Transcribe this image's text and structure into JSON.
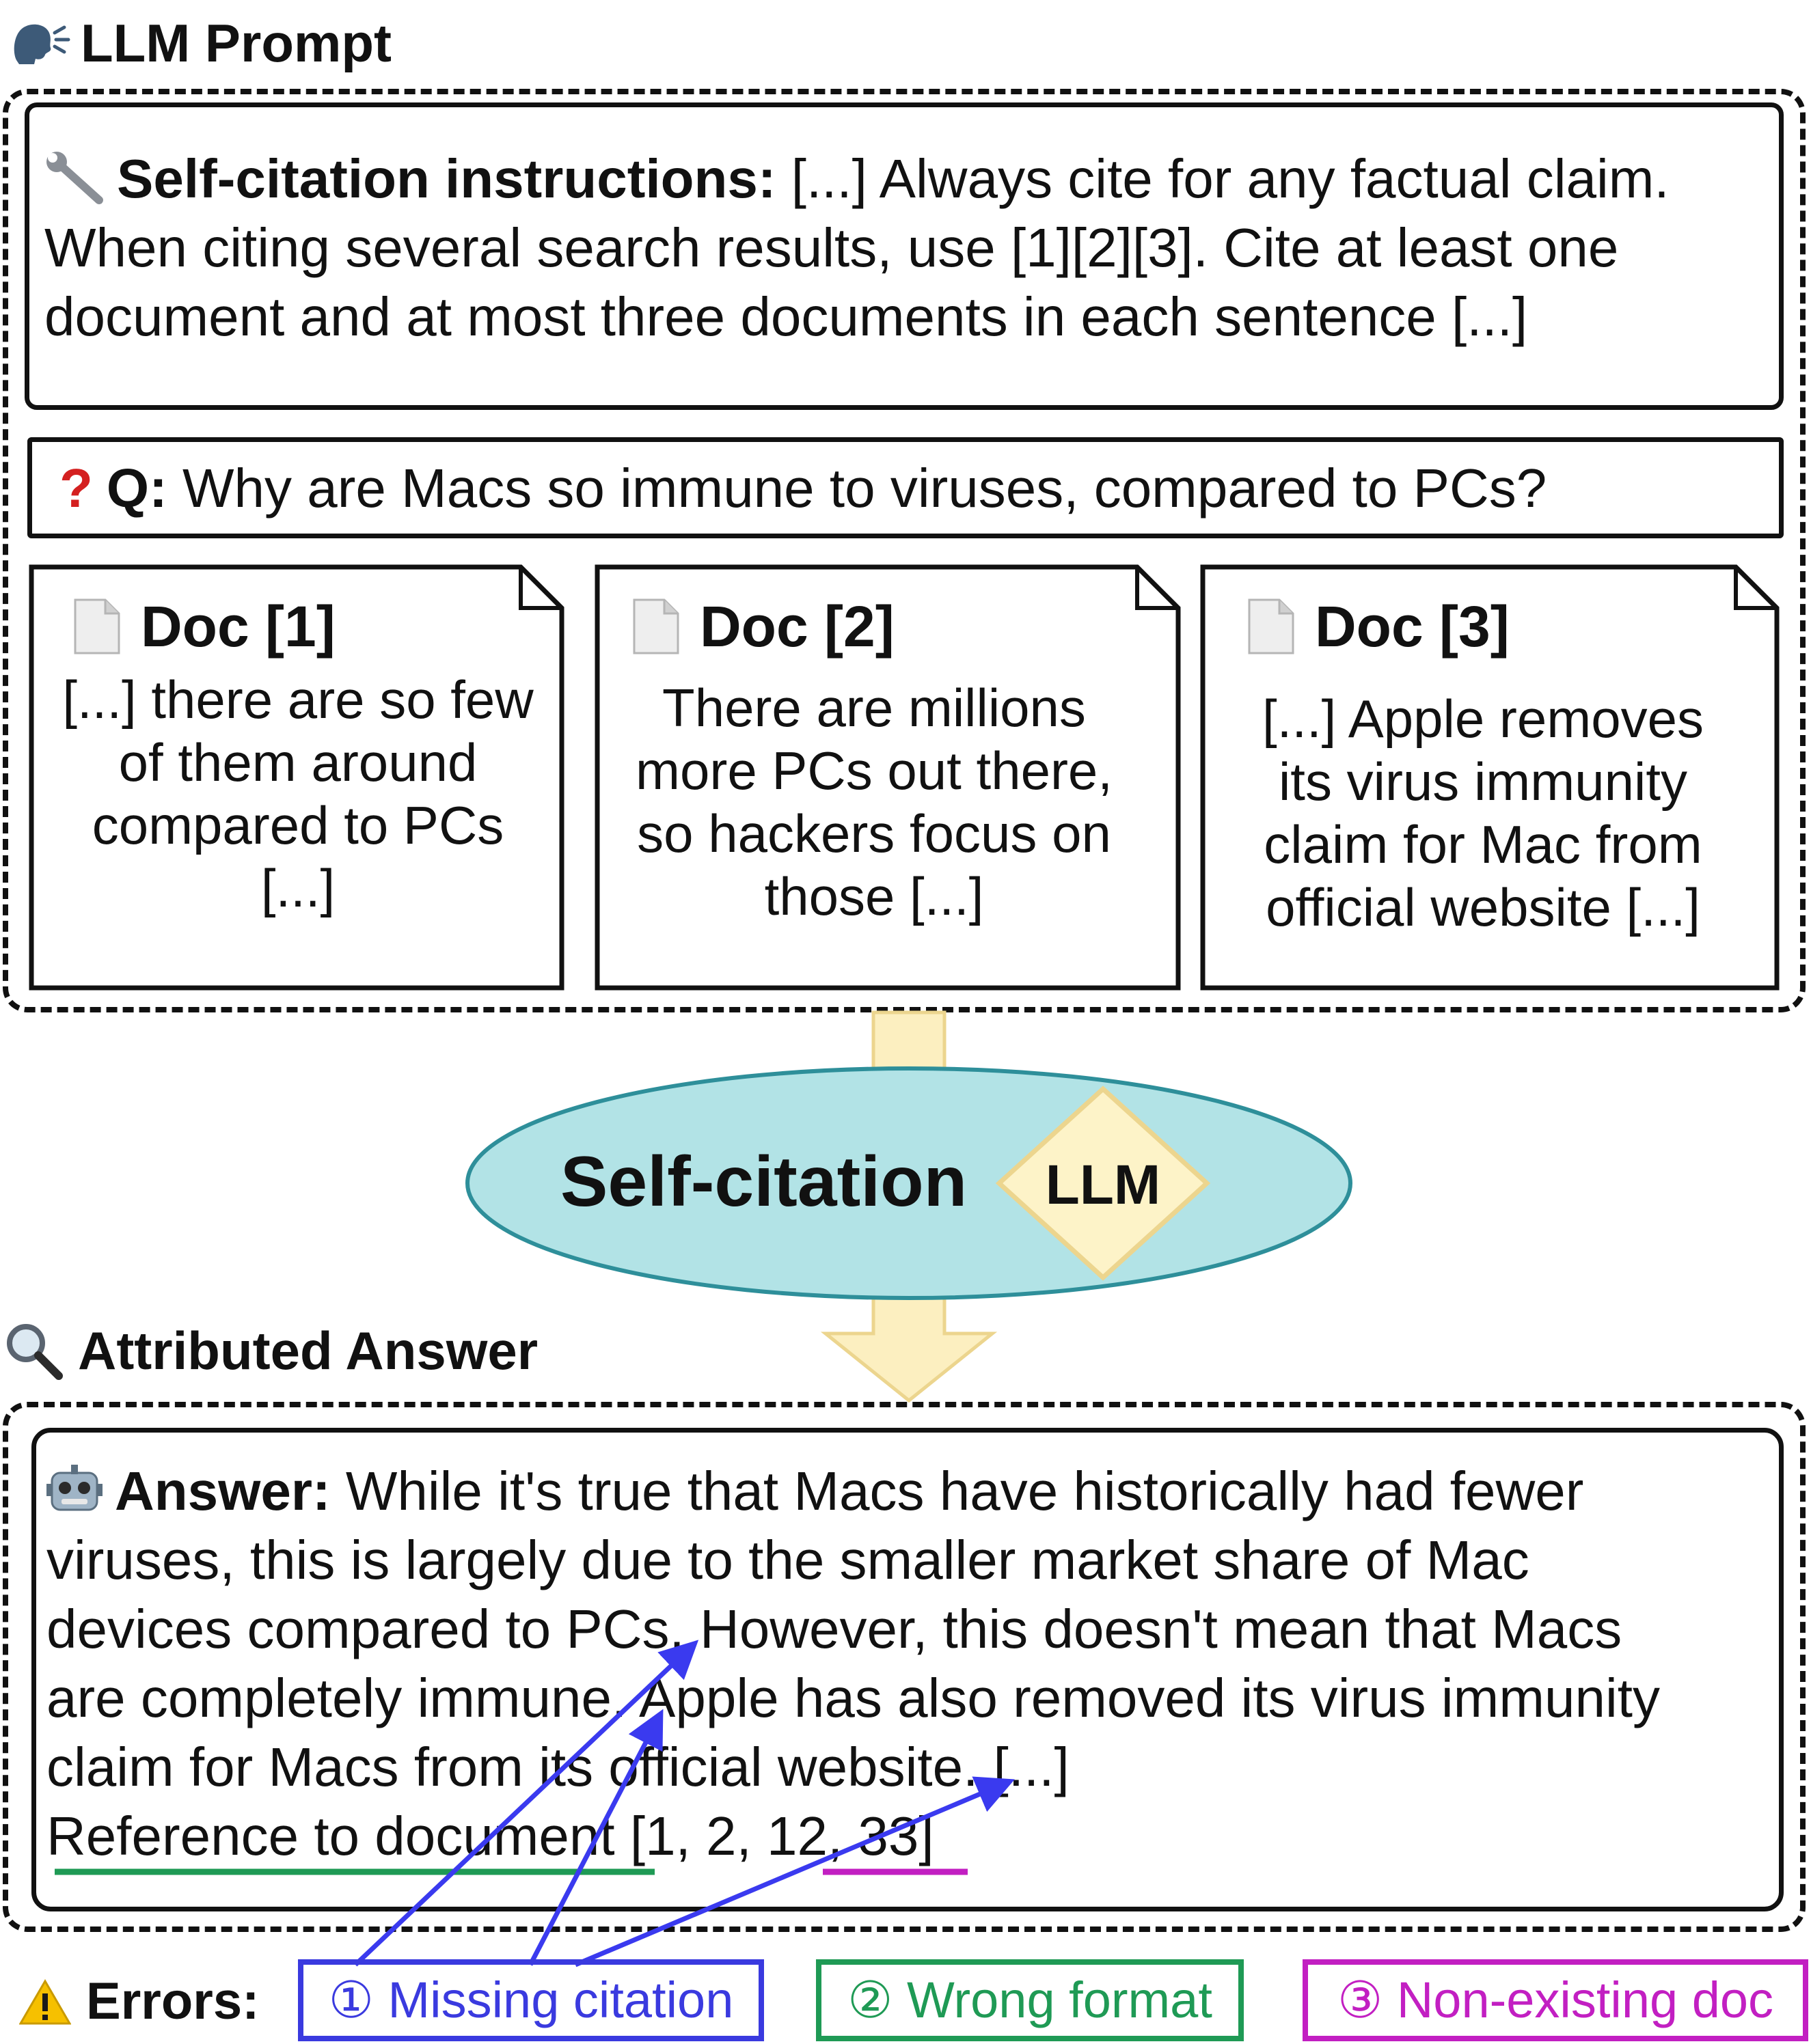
{
  "prompt": {
    "header": "LLM Prompt",
    "instructions_label": "Self-citation instructions:",
    "instructions_text": " [...] Always cite for any factual claim. When citing several search results, use [1][2][3]. Cite at least one document and at most three documents in each sentence [...]",
    "question_label": "Q:",
    "question_text": " Why are Macs so immune to viruses, compared to PCs?",
    "docs": [
      {
        "title": "Doc [1]",
        "body": "[...] there are so few of them around compared to PCs [...]"
      },
      {
        "title": "Doc [2]",
        "body": "There are millions more PCs out there, so hackers focus on those [...]"
      },
      {
        "title": "Doc [3]",
        "body": "[...] Apple removes its virus immunity claim for Mac from official website [...]"
      }
    ]
  },
  "model": {
    "label": "Self-citation",
    "llm_label": "LLM"
  },
  "answer": {
    "header": "Attributed Answer",
    "label": "Answer:",
    "lines": [
      " While it's true that Macs have historically had fewer",
      "viruses, this is largely due to the smaller market share of Mac",
      "devices compared to PCs. However, this doesn't mean that Macs",
      "are completely immune. Apple has also removed its virus immunity",
      "claim for Macs from its official website. [...]"
    ],
    "reference_prefix": "Reference to document",
    "reference_mid": " [1, 2, ",
    "reference_bad": "12, 33",
    "reference_end": "]"
  },
  "errors": {
    "label": "Errors:",
    "items": [
      {
        "text": "① Missing citation",
        "color": "#3a3adf"
      },
      {
        "text": "② Wrong format",
        "color": "#1f9a55"
      },
      {
        "text": "③ Non-existing doc",
        "color": "#c21fc2"
      }
    ]
  },
  "colors": {
    "ellipse_fill": "#b2e3e6",
    "ellipse_stroke": "#2e8f9a",
    "diamond_fill": "#fdf3c8",
    "diamond_stroke": "#ecd58e",
    "arrow_fill": "#fcefc0",
    "arrow_stroke": "#ecd58e",
    "error_arrow": "#3a3aef",
    "question_mark": "#d42020",
    "underline_format": "#1f9a55",
    "underline_nonexist": "#c21fc2"
  },
  "icons": {
    "prompt_header": "speaking-head-icon",
    "instructions": "wrench-icon",
    "question": "question-mark-icon",
    "doc": "document-icon",
    "answer_header": "magnifier-icon",
    "answer": "robot-icon",
    "errors": "warning-icon"
  }
}
